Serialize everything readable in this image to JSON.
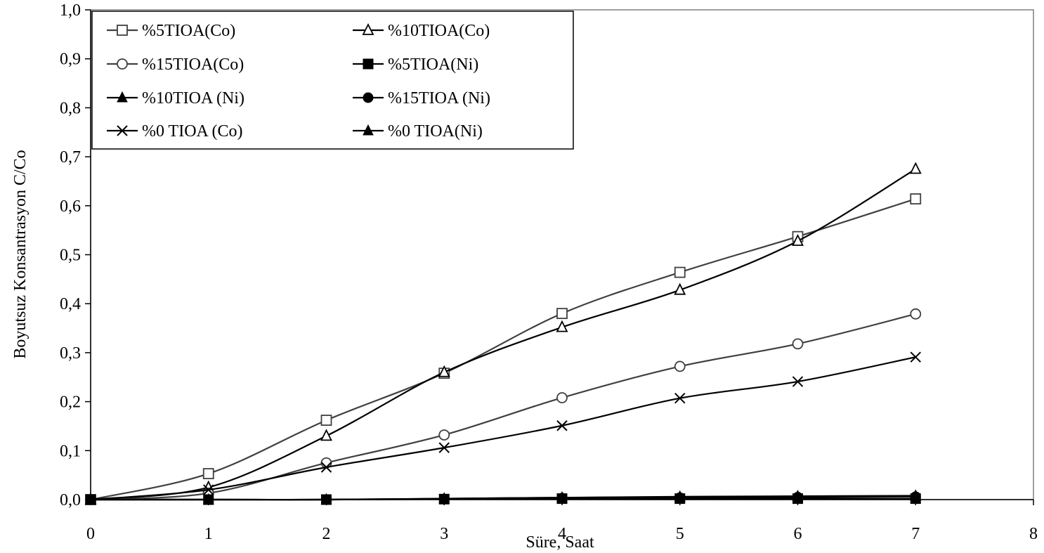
{
  "chart_data": {
    "type": "line",
    "title": "",
    "xlabel": "Süre, Saat",
    "ylabel": "Boyutsuz Konsantrasyon C/Co",
    "xlim": [
      0,
      8
    ],
    "ylim": [
      0,
      1
    ],
    "x_ticks": [
      "0",
      "1",
      "2",
      "3",
      "4",
      "5",
      "6",
      "7",
      "8"
    ],
    "y_ticks": [
      "0,0",
      "0,1",
      "0,2",
      "0,3",
      "0,4",
      "0,5",
      "0,6",
      "0,7",
      "0,8",
      "0,9",
      "1,0"
    ],
    "grid": false,
    "legend_position": "top-left",
    "x": [
      0,
      1,
      2,
      3,
      4,
      5,
      6,
      7
    ],
    "series": [
      {
        "name": "%5TIOA(Co)",
        "marker": "square-open",
        "color": "#404040",
        "values": [
          0,
          0.053,
          0.162,
          0.258,
          0.38,
          0.464,
          0.537,
          0.614
        ]
      },
      {
        "name": "%10TIOA(Co)",
        "marker": "triangle-open",
        "color": "#000000",
        "values": [
          0,
          0.025,
          0.13,
          0.26,
          0.352,
          0.428,
          0.528,
          0.675
        ]
      },
      {
        "name": "%15TIOA(Co)",
        "marker": "circle-open",
        "color": "#404040",
        "values": [
          0,
          0.013,
          0.075,
          0.132,
          0.208,
          0.272,
          0.318,
          0.379
        ]
      },
      {
        "name": "%5TIOA(Ni)",
        "marker": "square-filled",
        "color": "#000000",
        "values": [
          0,
          0,
          0,
          0.001,
          0.002,
          0.002,
          0.002,
          0.002
        ]
      },
      {
        "name": "%10TIOA (Ni)",
        "marker": "triangle-filled",
        "color": "#000000",
        "values": [
          0,
          0,
          0,
          0.002,
          0.004,
          0.005,
          0.006,
          0.007
        ]
      },
      {
        "name": "%15TIOA (Ni)",
        "marker": "circle-filled",
        "color": "#000000",
        "values": [
          0,
          0,
          0,
          0.001,
          0.003,
          0.004,
          0.005,
          0.006
        ]
      },
      {
        "name": "%0 TIOA (Co)",
        "marker": "x",
        "color": "#000000",
        "values": [
          0,
          0.02,
          0.066,
          0.106,
          0.151,
          0.207,
          0.241,
          0.291
        ]
      },
      {
        "name": "%0 TIOA(Ni)",
        "marker": "triangle-filled",
        "color": "#000000",
        "values": [
          0,
          0,
          0,
          0.002,
          0.004,
          0.006,
          0.007,
          0.008
        ]
      }
    ]
  }
}
